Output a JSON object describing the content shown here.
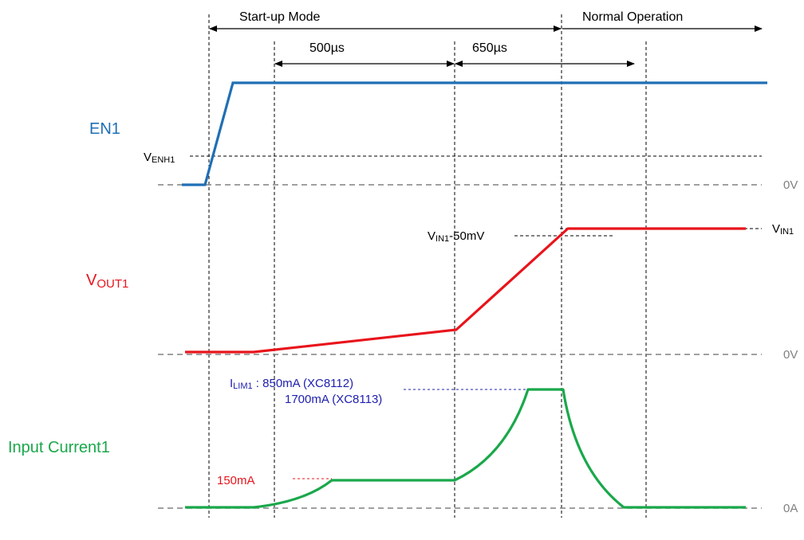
{
  "colors": {
    "en": "#1f6fb5",
    "vout": "#e8141b",
    "current": "#1aa84b",
    "ilim_label": "#2020b0",
    "marker_150": "#e8141b",
    "ref_gray": "#808080"
  },
  "phases": {
    "startup": "Start-up Mode",
    "normal": "Normal Operation"
  },
  "timings": {
    "t1": "500µs",
    "t2": "650µs"
  },
  "signals": {
    "en": "EN1",
    "vout_main": "V",
    "vout_sub": "OUT1",
    "current": "Input Current1"
  },
  "levels": {
    "venh_main": "V",
    "venh_sub": "ENH1",
    "en_zero": "0V",
    "vout_zero": "0V",
    "current_zero": "0A",
    "vin_main": "V",
    "vin_sub": "IN1",
    "vin_minus_main": "V",
    "vin_minus_sub": "IN1",
    "vin_minus_suffix": "-50mV",
    "ilim_main": "I",
    "ilim_sub": "LIM1",
    "ilim_line1": " : 850mA (XC8112)",
    "ilim_line2": "1700mA (XC8113)",
    "i150": "150mA"
  }
}
